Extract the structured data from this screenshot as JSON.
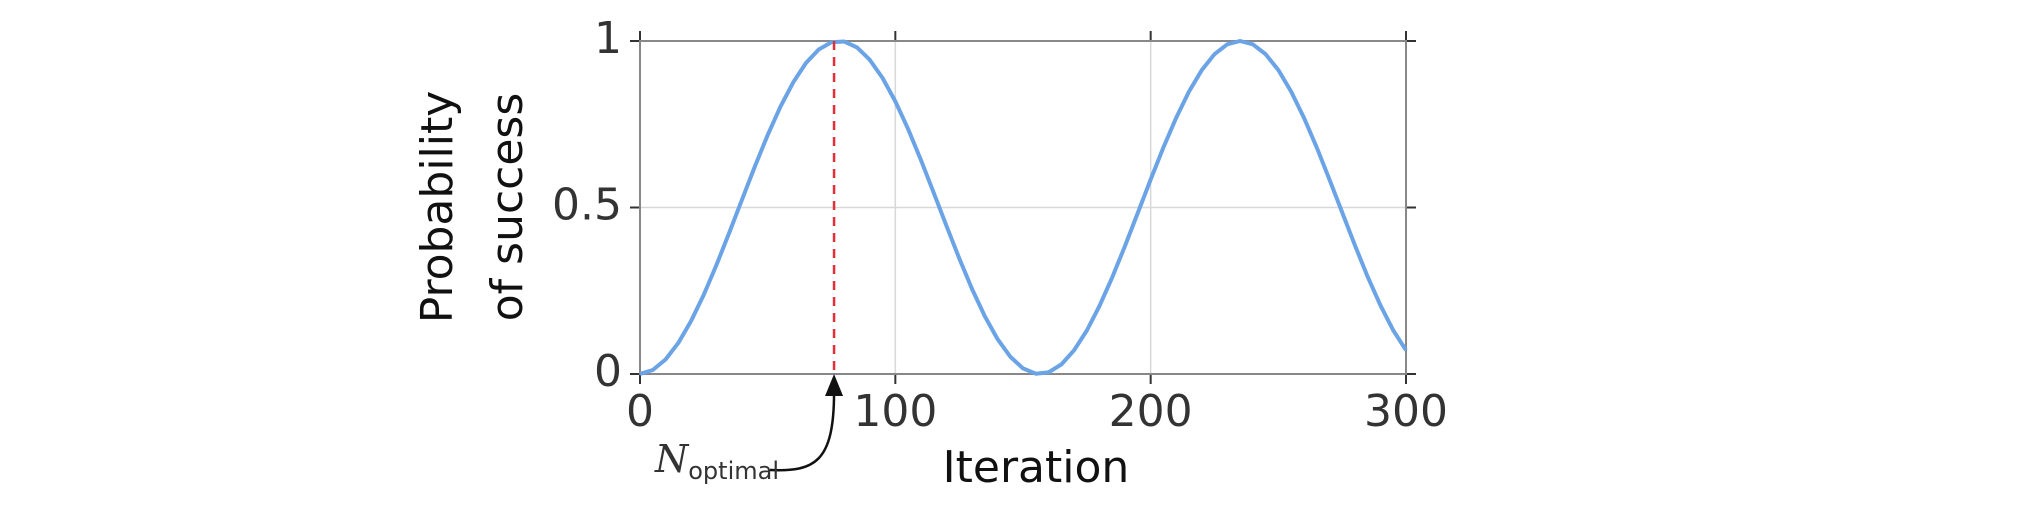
{
  "chart_data": {
    "type": "line",
    "xlabel": "Iteration",
    "ylabel": [
      "Probability",
      "of success"
    ],
    "x": [
      0,
      5,
      10,
      15,
      20,
      25,
      30,
      35,
      40,
      45,
      50,
      55,
      60,
      65,
      70,
      75,
      80,
      85,
      90,
      95,
      100,
      105,
      110,
      115,
      120,
      125,
      130,
      135,
      140,
      145,
      150,
      155,
      160,
      165,
      170,
      175,
      180,
      185,
      190,
      195,
      200,
      205,
      210,
      215,
      220,
      225,
      230,
      235,
      240,
      245,
      250,
      255,
      260,
      265,
      270,
      275,
      280,
      285,
      290,
      295,
      300
    ],
    "series": [
      {
        "color": "#6aa3e6",
        "values": [
          0.0001,
          0.012,
          0.0435,
          0.0932,
          0.159,
          0.2384,
          0.3284,
          0.4252,
          0.5246,
          0.6236,
          0.7174,
          0.8026,
          0.8757,
          0.9339,
          0.9746,
          0.9964,
          0.9984,
          0.9806,
          0.9434,
          0.8889,
          0.8187,
          0.7357,
          0.643,
          0.5449,
          0.4453,
          0.3479,
          0.256,
          0.1741,
          0.1052,
          0.0522,
          0.0169,
          0.0009,
          0.0049,
          0.0286,
          0.0711,
          0.1306,
          0.2051,
          0.2912,
          0.3856,
          0.4846,
          0.584,
          0.6805,
          0.7695,
          0.8479,
          0.9124,
          0.9604,
          0.99,
          1.0,
          0.99,
          0.9606,
          0.9128,
          0.8484,
          0.77,
          0.6811,
          0.5846,
          0.4854,
          0.3864,
          0.2918,
          0.2058,
          0.1312,
          0.0714
        ]
      }
    ],
    "xlim": [
      0,
      300
    ],
    "xticks": [
      0,
      100,
      200,
      300
    ],
    "ylim": [
      0,
      1
    ],
    "yticks": [
      0,
      0.5,
      1
    ],
    "grid": true,
    "annotation": {
      "x": 76,
      "color": "#e0303a",
      "text": "N",
      "subscript": "optimal"
    }
  }
}
